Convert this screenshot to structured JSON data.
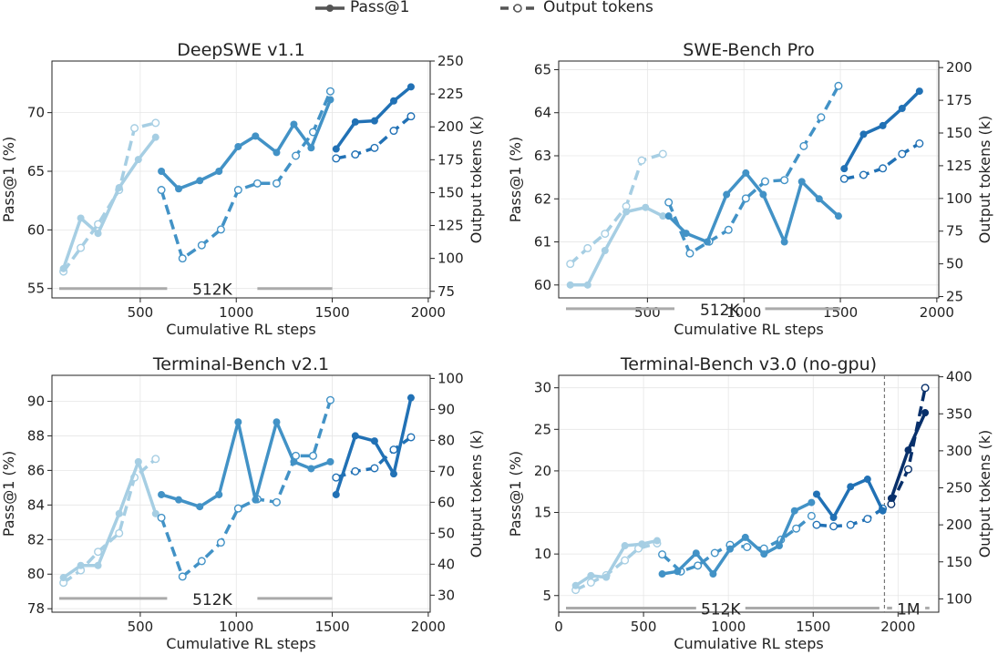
{
  "legend": {
    "items": [
      {
        "label": "Pass@1",
        "style": "solid"
      },
      {
        "label": "Output tokens",
        "style": "dashed"
      }
    ]
  },
  "colors": {
    "segments": [
      "#a6cee3",
      "#4292c6",
      "#2171b5",
      "#08306b"
    ],
    "baseline": "#aaaaaa",
    "grid": "#e6e6e6",
    "vline": "#777777"
  },
  "chart_data": [
    {
      "type": "line",
      "title": "DeepSWE v1.1",
      "xlabel": "Cumulative RL steps",
      "ylabel": "Pass@1 (%)",
      "ylabel2": "Output tokens (k)",
      "xlim": [
        40,
        2010
      ],
      "xticks": [
        500,
        1000,
        1500,
        2000
      ],
      "ylim": [
        54.2,
        74.4
      ],
      "yticks": [
        55,
        60,
        65,
        70
      ],
      "ylim2": [
        70,
        250
      ],
      "yticks2": [
        75,
        100,
        125,
        150,
        175,
        200,
        225,
        250
      ],
      "baseline": {
        "labels": [
          "512K"
        ],
        "y": 55
      },
      "series": [
        {
          "values": [
            [
              100,
              56.7
            ],
            [
              190,
              61.0
            ],
            [
              280,
              59.7
            ],
            [
              390,
              63.6
            ],
            [
              490,
              66.0
            ],
            [
              580,
              67.9
            ]
          ],
          "tokens": [
            [
              100,
              90
            ],
            [
              190,
              108
            ],
            [
              280,
              126
            ],
            [
              390,
              152
            ],
            [
              470,
              199
            ],
            [
              580,
              203
            ]
          ]
        },
        {
          "values": [
            [
              610,
              65.0
            ],
            [
              700,
              63.5
            ],
            [
              810,
              64.2
            ],
            [
              910,
              65.0
            ],
            [
              1010,
              67.1
            ],
            [
              1100,
              68.0
            ],
            [
              1210,
              66.6
            ],
            [
              1300,
              69.0
            ],
            [
              1390,
              67.0
            ],
            [
              1490,
              71.1
            ]
          ],
          "tokens": [
            [
              610,
              152
            ],
            [
              720,
              100
            ],
            [
              820,
              110
            ],
            [
              920,
              122
            ],
            [
              1010,
              152
            ],
            [
              1110,
              157
            ],
            [
              1210,
              157
            ],
            [
              1310,
              178
            ],
            [
              1400,
              196
            ],
            [
              1490,
              227
            ]
          ]
        },
        {
          "values": [
            [
              1520,
              66.9
            ],
            [
              1620,
              69.2
            ],
            [
              1720,
              69.3
            ],
            [
              1820,
              71.0
            ],
            [
              1910,
              72.2
            ]
          ],
          "tokens": [
            [
              1520,
              176
            ],
            [
              1620,
              179
            ],
            [
              1720,
              184
            ],
            [
              1820,
              197
            ],
            [
              1910,
              208
            ]
          ]
        }
      ]
    },
    {
      "type": "line",
      "title": "SWE-Bench Pro",
      "xlabel": "Cumulative RL steps",
      "ylabel": "Pass@1 (%)",
      "ylabel2": "Output tokens (k)",
      "xlim": [
        40,
        2010
      ],
      "xticks": [
        500,
        1000,
        1500,
        2000
      ],
      "ylim": [
        59.7,
        65.2
      ],
      "yticks": [
        60,
        61,
        62,
        63,
        64,
        65
      ],
      "ylim2": [
        24,
        205
      ],
      "yticks2": [
        25,
        50,
        75,
        100,
        125,
        150,
        175,
        200
      ],
      "baseline": {
        "labels": [
          "512K"
        ],
        "y": 59.45
      },
      "series": [
        {
          "values": [
            [
              100,
              60.0
            ],
            [
              190,
              60.0
            ],
            [
              280,
              60.8
            ],
            [
              390,
              61.7
            ],
            [
              490,
              61.8
            ],
            [
              580,
              61.6
            ]
          ],
          "tokens": [
            [
              100,
              50
            ],
            [
              190,
              62
            ],
            [
              280,
              73
            ],
            [
              390,
              94
            ],
            [
              470,
              129
            ],
            [
              580,
              134
            ]
          ]
        },
        {
          "values": [
            [
              610,
              61.6
            ],
            [
              700,
              61.2
            ],
            [
              810,
              61.0
            ],
            [
              910,
              62.1
            ],
            [
              1010,
              62.6
            ],
            [
              1100,
              62.1
            ],
            [
              1210,
              61.0
            ],
            [
              1300,
              62.4
            ],
            [
              1390,
              62.0
            ],
            [
              1490,
              61.6
            ]
          ],
          "tokens": [
            [
              610,
              97
            ],
            [
              720,
              58
            ],
            [
              820,
              67
            ],
            [
              920,
              76
            ],
            [
              1010,
              100
            ],
            [
              1110,
              113
            ],
            [
              1210,
              114
            ],
            [
              1310,
              140
            ],
            [
              1400,
              162
            ],
            [
              1490,
              186
            ]
          ]
        },
        {
          "values": [
            [
              1520,
              62.7
            ],
            [
              1620,
              63.5
            ],
            [
              1720,
              63.7
            ],
            [
              1820,
              64.1
            ],
            [
              1910,
              64.5
            ]
          ],
          "tokens": [
            [
              1520,
              115
            ],
            [
              1620,
              118
            ],
            [
              1720,
              123
            ],
            [
              1820,
              134
            ],
            [
              1910,
              142
            ]
          ]
        }
      ]
    },
    {
      "type": "line",
      "title": "Terminal-Bench v2.1",
      "xlabel": "Cumulative RL steps",
      "ylabel": "Pass@1 (%)",
      "ylabel2": "Output tokens (k)",
      "xlim": [
        40,
        2010
      ],
      "xticks": [
        500,
        1000,
        1500,
        2000
      ],
      "ylim": [
        77.8,
        91.5
      ],
      "yticks": [
        78,
        80,
        82,
        84,
        86,
        88,
        90
      ],
      "ylim2": [
        24.5,
        101
      ],
      "yticks2": [
        30,
        40,
        50,
        60,
        70,
        80,
        90,
        100
      ],
      "baseline": {
        "labels": [
          "512K"
        ],
        "y": 78.6
      },
      "series": [
        {
          "values": [
            [
              100,
              79.8
            ],
            [
              190,
              80.5
            ],
            [
              280,
              80.5
            ],
            [
              390,
              83.5
            ],
            [
              490,
              86.5
            ],
            [
              580,
              83.5
            ]
          ],
          "tokens": [
            [
              100,
              34
            ],
            [
              190,
              38
            ],
            [
              280,
              44
            ],
            [
              390,
              50
            ],
            [
              470,
              68
            ],
            [
              580,
              74
            ]
          ]
        },
        {
          "values": [
            [
              610,
              84.6
            ],
            [
              700,
              84.3
            ],
            [
              810,
              83.9
            ],
            [
              910,
              84.6
            ],
            [
              1010,
              88.8
            ],
            [
              1100,
              84.3
            ],
            [
              1210,
              88.8
            ],
            [
              1300,
              86.5
            ],
            [
              1390,
              86.1
            ],
            [
              1490,
              86.5
            ]
          ],
          "tokens": [
            [
              610,
              55
            ],
            [
              720,
              36
            ],
            [
              820,
              41
            ],
            [
              920,
              47
            ],
            [
              1010,
              58
            ],
            [
              1110,
              61
            ],
            [
              1210,
              60
            ],
            [
              1310,
              75
            ],
            [
              1400,
              75
            ],
            [
              1490,
              93
            ]
          ]
        },
        {
          "values": [
            [
              1520,
              84.6
            ],
            [
              1620,
              88.0
            ],
            [
              1720,
              87.7
            ],
            [
              1820,
              85.8
            ],
            [
              1910,
              90.2
            ]
          ],
          "tokens": [
            [
              1520,
              68
            ],
            [
              1620,
              70
            ],
            [
              1720,
              71
            ],
            [
              1820,
              77
            ],
            [
              1910,
              81
            ]
          ]
        }
      ]
    },
    {
      "type": "line",
      "title": "Terminal-Bench v3.0 (no-gpu)",
      "xlabel": "Cumulative RL steps",
      "ylabel": "Pass@1 (%)",
      "ylabel2": "Output tokens (k)",
      "xlim": [
        0,
        2240
      ],
      "xticks": [
        0,
        500,
        1000,
        1500,
        2000
      ],
      "ylim": [
        3,
        31.5
      ],
      "yticks": [
        5,
        10,
        15,
        20,
        25,
        30
      ],
      "ylim2": [
        82,
        402
      ],
      "yticks2": [
        100,
        150,
        200,
        250,
        300,
        350,
        400
      ],
      "baseline": {
        "labels": [
          "512K",
          "1M"
        ],
        "y": 3.5
      },
      "vline": 1920,
      "series": [
        {
          "values": [
            [
              100,
              6.2
            ],
            [
              190,
              7.4
            ],
            [
              280,
              7.2
            ],
            [
              390,
              11.0
            ],
            [
              490,
              11.2
            ],
            [
              580,
              11.6
            ]
          ],
          "tokens": [
            [
              100,
              112
            ],
            [
              190,
              122
            ],
            [
              280,
              132
            ],
            [
              390,
              152
            ],
            [
              470,
              168
            ],
            [
              580,
              175
            ]
          ]
        },
        {
          "values": [
            [
              610,
              7.6
            ],
            [
              700,
              7.9
            ],
            [
              810,
              10.1
            ],
            [
              910,
              7.6
            ],
            [
              1010,
              10.6
            ],
            [
              1100,
              12.0
            ],
            [
              1210,
              10.0
            ],
            [
              1300,
              11.0
            ],
            [
              1390,
              15.2
            ],
            [
              1490,
              16.2
            ]
          ],
          "tokens": [
            [
              610,
              160
            ],
            [
              720,
              137
            ],
            [
              820,
              145
            ],
            [
              920,
              162
            ],
            [
              1010,
              173
            ],
            [
              1110,
              170
            ],
            [
              1210,
              168
            ],
            [
              1310,
              180
            ],
            [
              1400,
              195
            ],
            [
              1490,
              212
            ]
          ]
        },
        {
          "values": [
            [
              1520,
              17.2
            ],
            [
              1620,
              14.4
            ],
            [
              1720,
              18.1
            ],
            [
              1820,
              19.0
            ],
            [
              1910,
              15.2
            ]
          ],
          "tokens": [
            [
              1520,
              200
            ],
            [
              1620,
              198
            ],
            [
              1720,
              200
            ],
            [
              1820,
              208
            ],
            [
              1910,
              222
            ]
          ]
        },
        {
          "values": [
            [
              1960,
              16.7
            ],
            [
              2060,
              22.5
            ],
            [
              2160,
              27.0
            ]
          ],
          "tokens": [
            [
              1960,
              228
            ],
            [
              2060,
              275
            ],
            [
              2160,
              385
            ]
          ]
        }
      ]
    }
  ]
}
